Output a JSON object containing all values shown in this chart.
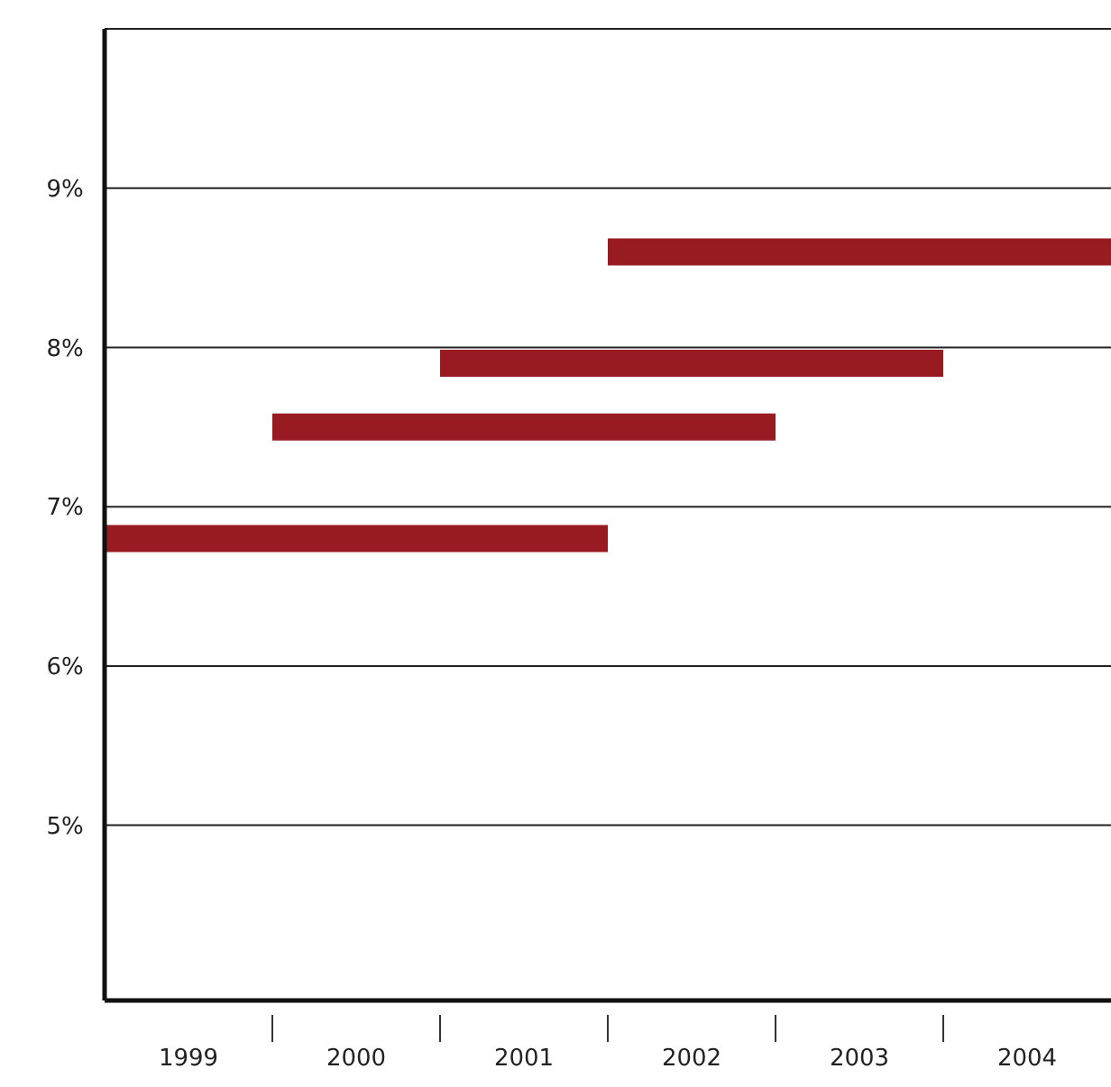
{
  "chart_data": {
    "type": "line",
    "xlim": [
      1998.5,
      2004.5
    ],
    "ylim": [
      3.9,
      10
    ],
    "xticks": [
      {
        "value": 1999,
        "label": "1999"
      },
      {
        "value": 2000,
        "label": "2000"
      },
      {
        "value": 2001,
        "label": "2001"
      },
      {
        "value": 2002,
        "label": "2002"
      },
      {
        "value": 2003,
        "label": "2003"
      },
      {
        "value": 2004,
        "label": "2004"
      },
      {
        "value": 1999.5,
        "label": null
      },
      {
        "value": 2000.5,
        "label": null
      },
      {
        "value": 2001.5,
        "label": null
      },
      {
        "value": 2002.5,
        "label": null
      },
      {
        "value": 2003.5,
        "label": null
      }
    ],
    "yticks": [
      {
        "value": 5,
        "label": "5%"
      },
      {
        "value": 6,
        "label": "6%"
      },
      {
        "value": 7,
        "label": "7%"
      },
      {
        "value": 8,
        "label": "8%"
      },
      {
        "value": 9,
        "label": "9%"
      }
    ],
    "grid": "y",
    "marker": "none",
    "line_style": "solid",
    "series": [
      {
        "color": "#971b20",
        "x": [
          1998.5,
          2001.5
        ],
        "values": [
          6.8,
          6.8
        ]
      },
      {
        "color": "#971b20",
        "x": [
          1999.5,
          2002.5
        ],
        "values": [
          7.5,
          7.5
        ]
      },
      {
        "color": "#971b20",
        "x": [
          2000.5,
          2003.5
        ],
        "values": [
          7.9,
          7.9
        ]
      },
      {
        "color": "#971b20",
        "x": [
          2001.5,
          2004.5
        ],
        "values": [
          8.6,
          8.6
        ]
      }
    ]
  }
}
